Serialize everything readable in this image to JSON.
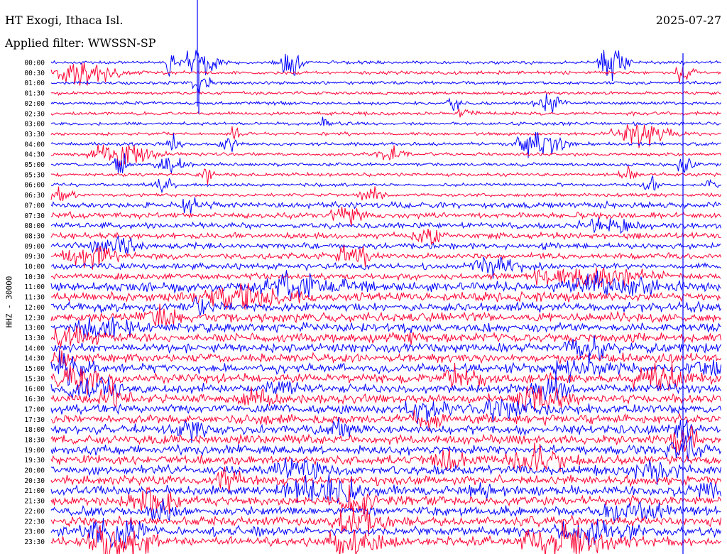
{
  "header": {
    "station": "HT Exogi, Ithaca Isl.",
    "filter": "Applied filter: WWSSN-SP",
    "date": "2025-07-27"
  },
  "chart_data": {
    "type": "line",
    "title": "HT Exogi, Ithaca Isl.",
    "subtitle": "Applied filter: WWSSN-SP",
    "date": "2025-07-27",
    "ylabel": "HHZ - 30000",
    "trace_labels": [
      "00:00",
      "00:30",
      "01:00",
      "01:30",
      "02:00",
      "02:30",
      "03:00",
      "03:30",
      "04:00",
      "04:30",
      "05:00",
      "05:30",
      "06:00",
      "06:30",
      "07:00",
      "07:30",
      "08:00",
      "08:30",
      "09:00",
      "09:30",
      "10:00",
      "10:30",
      "11:00",
      "11:30",
      "12:00",
      "12:30",
      "13:00",
      "13:30",
      "14:00",
      "14:30",
      "15:00",
      "15:30",
      "16:00",
      "16:30",
      "17:00",
      "17:30",
      "18:00",
      "18:30",
      "19:00",
      "19:30",
      "20:00",
      "20:30",
      "21:00",
      "21:30",
      "22:00",
      "22:30",
      "23:00",
      "23:30"
    ],
    "series_colors": [
      "#0000ff",
      "#ff0033"
    ],
    "grid": false
  }
}
